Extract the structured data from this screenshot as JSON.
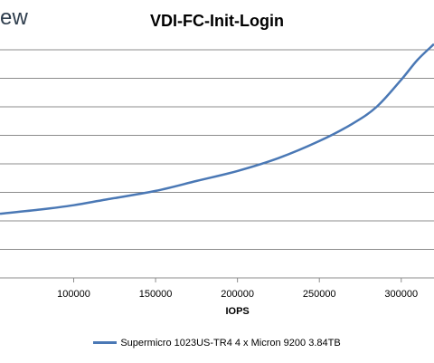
{
  "logo_text": "ew",
  "chart_data": {
    "type": "line",
    "title": "VDI-FC-Init-Login",
    "xlabel": "IOPS",
    "ylabel": "",
    "x_ticks": [
      100000,
      150000,
      200000,
      250000,
      300000
    ],
    "x_tick_labels": [
      "100000",
      "150000",
      "200000",
      "250000",
      "300000"
    ],
    "xlim": [
      55000,
      320000
    ],
    "ylim": [
      0,
      8
    ],
    "grid": "horizontal",
    "legend_position": "bottom",
    "series": [
      {
        "name": "Supermicro 1023US-TR4 4 x Micron 9200 3.84TB",
        "color": "#4a78b5",
        "x": [
          55000,
          80000,
          100000,
          120000,
          150000,
          175000,
          200000,
          225000,
          250000,
          270000,
          285000,
          300000,
          310000,
          320000
        ],
        "y": [
          2.25,
          2.4,
          2.55,
          2.75,
          3.05,
          3.4,
          3.75,
          4.2,
          4.8,
          5.4,
          6.0,
          6.95,
          7.65,
          8.2
        ]
      }
    ]
  }
}
